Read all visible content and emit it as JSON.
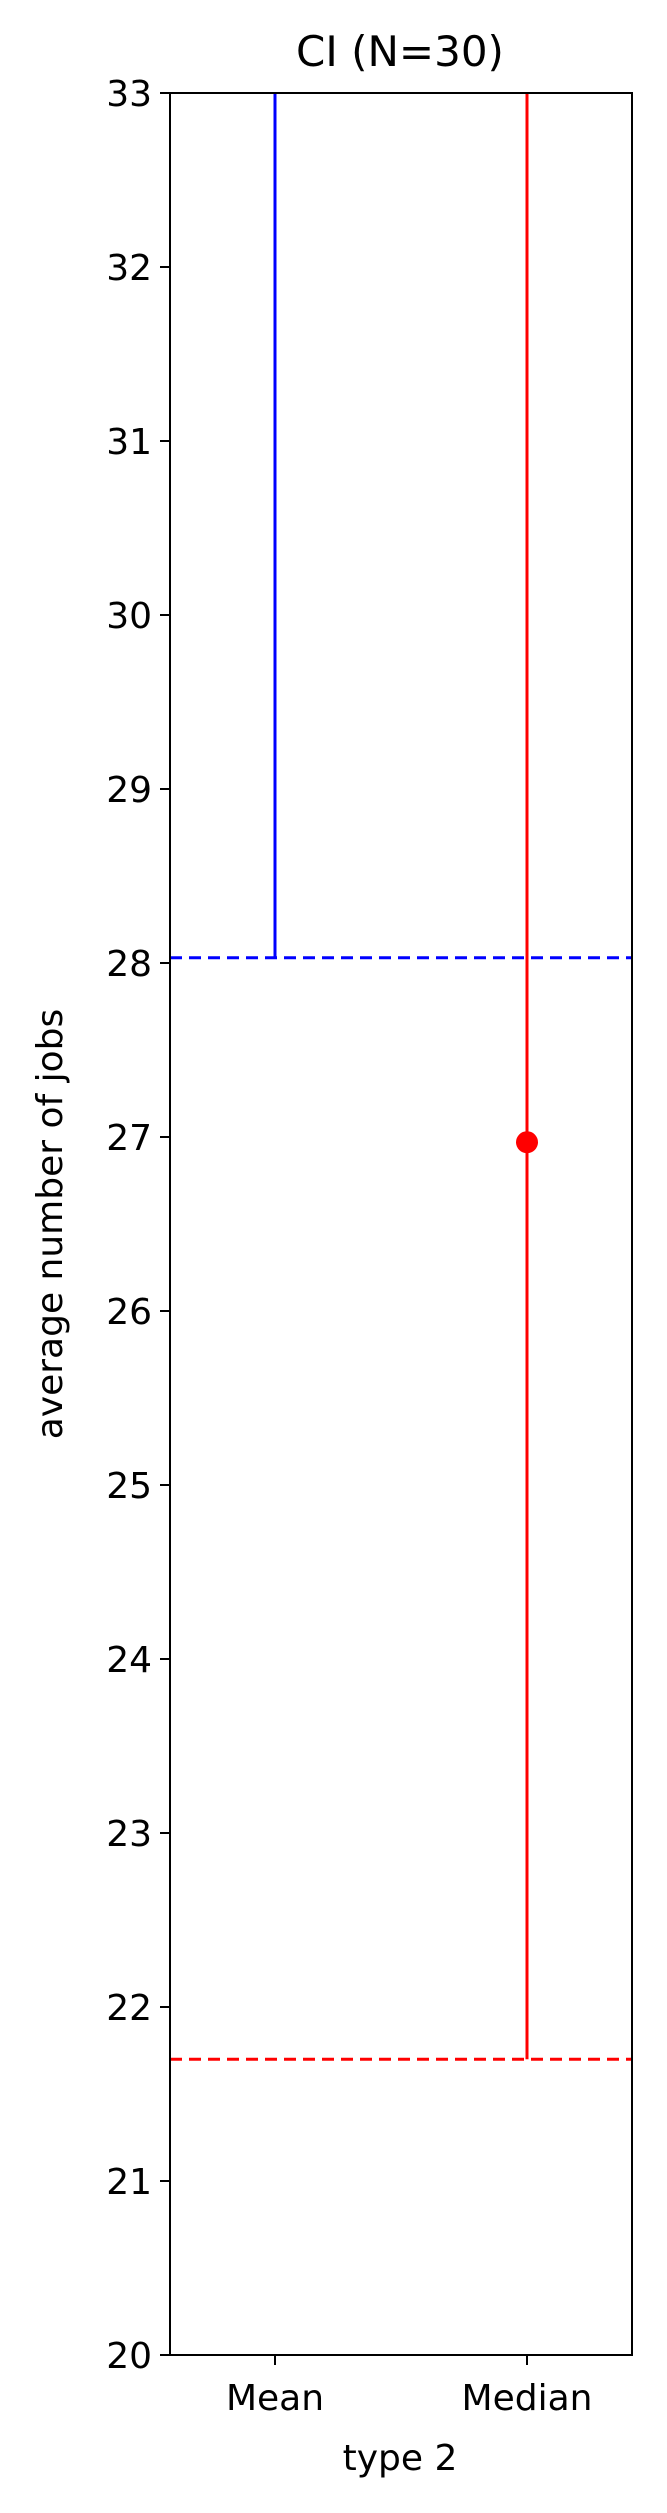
{
  "chart_data": {
    "type": "scatter",
    "title": "CI (N=30)",
    "xlabel": "type 2",
    "ylabel": "average number of jobs",
    "categories": [
      "Mean",
      "Median"
    ],
    "ylim": [
      20,
      33
    ],
    "yticks": [
      20,
      21,
      22,
      23,
      24,
      25,
      26,
      27,
      28,
      29,
      30,
      31,
      32,
      33
    ],
    "grid": false,
    "series": [
      {
        "category": "Mean",
        "color": "#0000ff",
        "ci_lower": 28.03,
        "ci_upper": 33,
        "reference_line": 28.03,
        "point": null
      },
      {
        "category": "Median",
        "color": "#ff0000",
        "ci_lower": 21.7,
        "ci_upper": 33,
        "reference_line": 21.7,
        "point": 26.97
      }
    ]
  }
}
